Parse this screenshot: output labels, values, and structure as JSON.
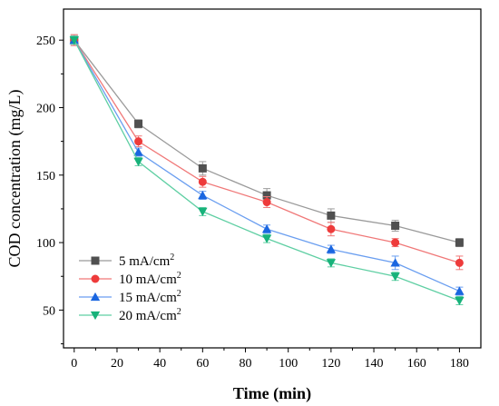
{
  "chart_data": {
    "type": "line",
    "xlabel": "Time (min)",
    "ylabel": "COD concentration (mg/L)",
    "xlim": [
      -5,
      190
    ],
    "ylim": [
      22,
      273
    ],
    "xticks": [
      0,
      20,
      40,
      60,
      80,
      100,
      120,
      140,
      160,
      180
    ],
    "yticks": [
      50,
      100,
      150,
      200,
      250
    ],
    "legend_position": "bottom-left",
    "grid": false,
    "x": [
      0,
      30,
      60,
      90,
      120,
      150,
      180
    ],
    "series": [
      {
        "name": "5 mA/cm",
        "name_sup": "2",
        "marker": "square",
        "color": "#505050",
        "line_color": "#9a9a9a",
        "values": [
          250,
          188,
          155,
          135,
          120,
          112.5,
          100
        ],
        "errors": [
          4,
          3,
          5,
          5,
          5,
          4,
          3
        ]
      },
      {
        "name": "10 mA/cm",
        "name_sup": "2",
        "marker": "circle",
        "color": "#ee3b3b",
        "line_color": "#f07878",
        "values": [
          250,
          175,
          145,
          130,
          110,
          100,
          85
        ],
        "errors": [
          4,
          4,
          4,
          4,
          5,
          3,
          5
        ]
      },
      {
        "name": "15 mA/cm",
        "name_sup": "2",
        "marker": "triangle-up",
        "color": "#1a66e0",
        "line_color": "#6a9ef0",
        "values": [
          250,
          167,
          135,
          110,
          95,
          85,
          64
        ],
        "errors": [
          3,
          3,
          3,
          3,
          3,
          5,
          3
        ]
      },
      {
        "name": "20 mA/cm",
        "name_sup": "2",
        "marker": "triangle-down",
        "color": "#17b27a",
        "line_color": "#5fcfa3",
        "values": [
          250,
          160,
          123,
          103,
          85,
          75,
          57
        ],
        "errors": [
          3,
          3,
          3,
          3,
          3,
          3,
          3
        ]
      }
    ]
  }
}
